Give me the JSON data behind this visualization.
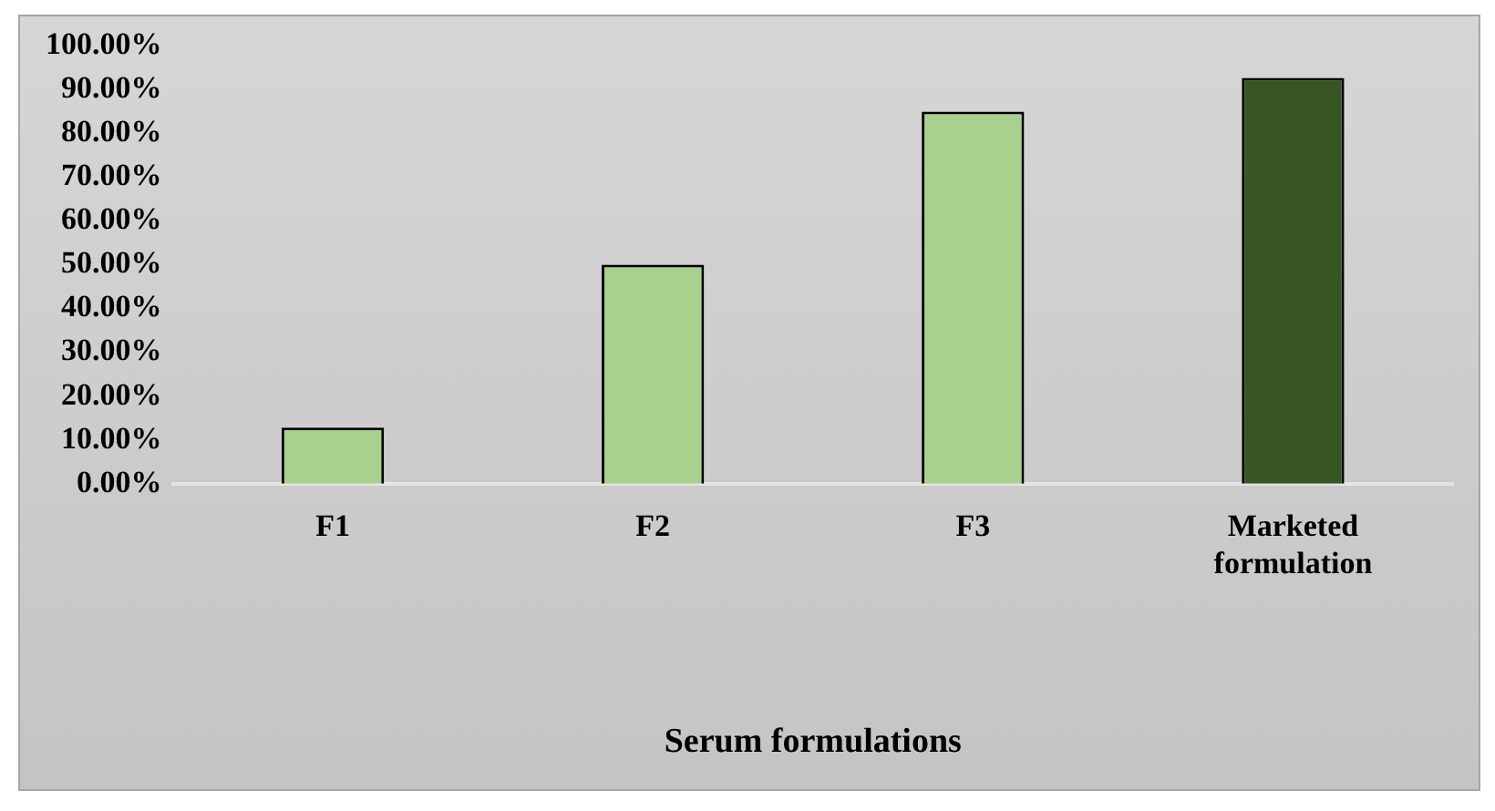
{
  "chart_data": {
    "type": "bar",
    "xlabel": "Serum formulations",
    "categories": [
      "F1",
      "F2",
      "F3",
      "Marketed formulation"
    ],
    "values": [
      12.8,
      50,
      85,
      92.7
    ],
    "colors": [
      "#a9d18e",
      "#a9d18e",
      "#a9d18e",
      "#375623"
    ],
    "ylim": [
      0,
      100
    ],
    "yticks": [
      {
        "value": 0,
        "label": "0.00%"
      },
      {
        "value": 10,
        "label": "10.00%"
      },
      {
        "value": 20,
        "label": "20.00%"
      },
      {
        "value": 30,
        "label": "30.00%"
      },
      {
        "value": 40,
        "label": "40.00%"
      },
      {
        "value": 50,
        "label": "50.00%"
      },
      {
        "value": 60,
        "label": "60.00%"
      },
      {
        "value": 70,
        "label": "70.00%"
      },
      {
        "value": 80,
        "label": "80.00%"
      },
      {
        "value": 90,
        "label": "90.00%"
      },
      {
        "value": 100,
        "label": "100.00%"
      }
    ],
    "grid": false,
    "legend": false
  }
}
